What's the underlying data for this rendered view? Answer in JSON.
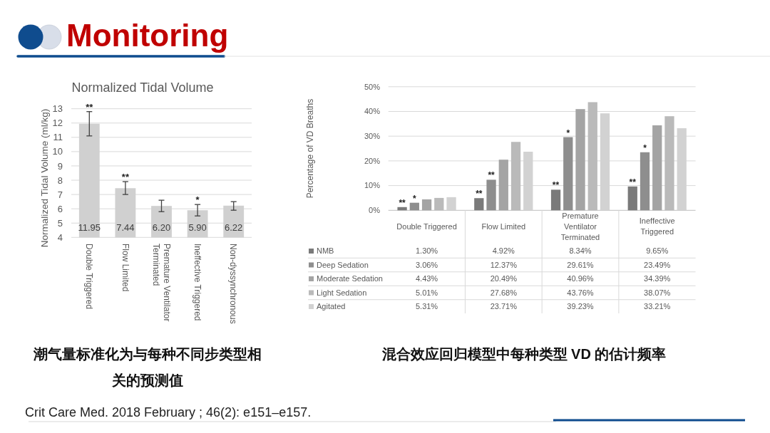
{
  "chart_data": [
    {
      "type": "other",
      "title": "Monitoring",
      "annotations": [
        "Crit Care Med. 2018 February ; 46(2): e151–e157."
      ]
    },
    {
      "type": "bar",
      "title": "Normalized Tidal Volume",
      "ylabel": "Normalized Tidal Volume (ml/kg)",
      "categories": [
        "Double Triggered",
        "Flow Limited",
        "Premature Ventilator Terminated",
        "Ineffective Triggered",
        "Non-dyssynchronous"
      ],
      "values": [
        11.95,
        7.44,
        6.2,
        5.9,
        6.22
      ],
      "value_labels": [
        "11.95",
        "7.44",
        "6.20",
        "5.90",
        "6.22"
      ],
      "errors": [
        [
          11.1,
          12.8
        ],
        [
          7.0,
          7.9
        ],
        [
          5.8,
          6.6
        ],
        [
          5.5,
          6.3
        ],
        [
          5.9,
          6.5
        ]
      ],
      "color": "#d0d0d0",
      "ylim": [
        4,
        13
      ],
      "yticks": [
        4,
        5,
        6,
        7,
        8,
        9,
        10,
        11,
        12,
        13
      ],
      "grid": "y",
      "annotations": [
        {
          "text": "**",
          "x": "Double Triggered",
          "y": 12.8
        },
        {
          "text": "**",
          "x": "Flow Limited",
          "y": 7.9
        },
        {
          "text": "*",
          "x": "Ineffective Triggered",
          "y": 6.3
        },
        "潮气量标准化为与每种不同步类型相关的预测值"
      ]
    },
    {
      "type": "bar",
      "ylabel": "Percentage of VD Breaths",
      "categories": [
        "Double Triggered",
        "Flow Limited",
        "Premature Ventilator Terminated",
        "Ineffective Triggered"
      ],
      "series": [
        {
          "name": "NMB",
          "color": "#7a7a7a",
          "values": [
            1.3,
            4.92,
            8.34,
            9.65
          ],
          "value_labels": [
            "1.30%",
            "4.92%",
            "8.34%",
            "9.65%"
          ]
        },
        {
          "name": "Deep Sedation",
          "color": "#8e8e8e",
          "values": [
            3.06,
            12.37,
            29.61,
            23.49
          ],
          "value_labels": [
            "3.06%",
            "12.37%",
            "29.61%",
            "23.49%"
          ]
        },
        {
          "name": "Moderate Sedation",
          "color": "#a4a4a4",
          "values": [
            4.43,
            20.49,
            40.96,
            34.39
          ],
          "value_labels": [
            "4.43%",
            "20.49%",
            "40.96%",
            "34.39%"
          ]
        },
        {
          "name": "Light Sedation",
          "color": "#bababa",
          "values": [
            5.01,
            27.68,
            43.76,
            38.07
          ],
          "value_labels": [
            "5.01%",
            "27.68%",
            "43.76%",
            "38.07%"
          ]
        },
        {
          "name": "Agitated",
          "color": "#d2d2d2",
          "values": [
            5.31,
            23.71,
            39.23,
            33.21
          ],
          "value_labels": [
            "5.31%",
            "23.71%",
            "39.23%",
            "33.21%"
          ]
        }
      ],
      "ylim": [
        0,
        50
      ],
      "yticks": [
        {
          "value": 0,
          "label": "0%"
        },
        {
          "value": 10,
          "label": "10%"
        },
        {
          "value": 20,
          "label": "20%"
        },
        {
          "value": 30,
          "label": "30%"
        },
        {
          "value": 40,
          "label": "40%"
        },
        {
          "value": 50,
          "label": "50%"
        }
      ],
      "grid": "y",
      "legend": "bottom",
      "annotations": [
        "**",
        "*",
        "**",
        "**",
        "**",
        "*",
        "**",
        "*",
        "混合效应回归模型中每种类型 VD 的估计频率"
      ]
    }
  ]
}
